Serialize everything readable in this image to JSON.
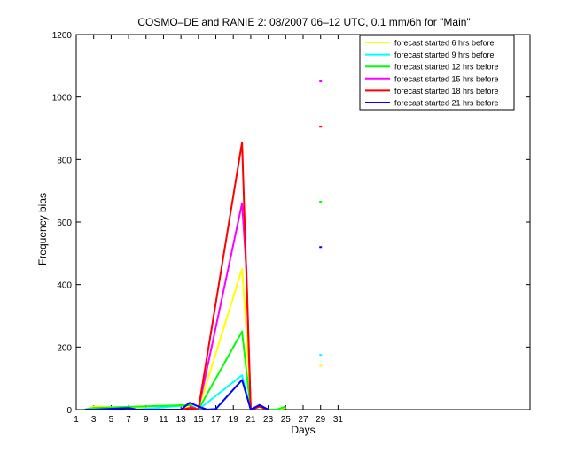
{
  "chart_data": {
    "type": "line",
    "title": "COSMO–DE and RANIE 2: 08/2007 06–12 UTC, 0.1 mm/6h for \"Main\"",
    "xlabel": "Days",
    "ylabel": "Frequency bias",
    "xlim": [
      1,
      53
    ],
    "ylim": [
      0,
      1200
    ],
    "xticks": [
      1,
      3,
      5,
      7,
      9,
      11,
      13,
      15,
      17,
      19,
      21,
      23,
      25,
      27,
      29,
      31
    ],
    "yticks": [
      0,
      200,
      400,
      600,
      800,
      1000,
      1200
    ],
    "legend_position": "top-right",
    "series": [
      {
        "name": "forecast started 6 hrs before",
        "color": "#ffff00",
        "points": [
          [
            2,
            0
          ],
          [
            3,
            10
          ],
          [
            13,
            0
          ],
          [
            14,
            10
          ],
          [
            15,
            0
          ],
          [
            20,
            450
          ],
          [
            20.5,
            250
          ],
          [
            21,
            0
          ],
          [
            22,
            15
          ],
          [
            23,
            0
          ],
          [
            24,
            0
          ],
          [
            25,
            5
          ],
          [
            29,
            140
          ]
        ]
      },
      {
        "name": "forecast started 9 hrs before",
        "color": "#00ffff",
        "points": [
          [
            2,
            0
          ],
          [
            3,
            5
          ],
          [
            7,
            5
          ],
          [
            8,
            0
          ],
          [
            14,
            15
          ],
          [
            15,
            0
          ],
          [
            20,
            110
          ],
          [
            21,
            0
          ],
          [
            22,
            10
          ],
          [
            23,
            0
          ],
          [
            29,
            175
          ]
        ]
      },
      {
        "name": "forecast started 12 hrs before",
        "color": "#00ff00",
        "points": [
          [
            2,
            0
          ],
          [
            3,
            5
          ],
          [
            14,
            15
          ],
          [
            15,
            0
          ],
          [
            20,
            250
          ],
          [
            21,
            0
          ],
          [
            22,
            12
          ],
          [
            23,
            0
          ],
          [
            24,
            0
          ],
          [
            25,
            10
          ],
          [
            29,
            665
          ]
        ]
      },
      {
        "name": "forecast started 15 hrs before",
        "color": "#ff00ff",
        "points": [
          [
            14,
            10
          ],
          [
            15,
            0
          ],
          [
            20,
            660
          ],
          [
            20.5,
            450
          ],
          [
            21,
            0
          ],
          [
            22,
            10
          ],
          [
            23,
            0
          ],
          [
            29,
            1050
          ]
        ]
      },
      {
        "name": "forecast started 18 hrs before",
        "color": "#ff0000",
        "points": [
          [
            13,
            0
          ],
          [
            14,
            5
          ],
          [
            15,
            0
          ],
          [
            20,
            855
          ],
          [
            21,
            0
          ],
          [
            22,
            10
          ],
          [
            23,
            0
          ],
          [
            29,
            905
          ]
        ]
      },
      {
        "name": "forecast started 21 hrs before",
        "color": "#0000ff",
        "points": [
          [
            2,
            0
          ],
          [
            3,
            0
          ],
          [
            7,
            5
          ],
          [
            8,
            0
          ],
          [
            13,
            0
          ],
          [
            14,
            22
          ],
          [
            15,
            10
          ],
          [
            16,
            0
          ],
          [
            17,
            2
          ],
          [
            20,
            95
          ],
          [
            21,
            0
          ],
          [
            22,
            15
          ],
          [
            23,
            0
          ],
          [
            29,
            520
          ]
        ]
      }
    ]
  }
}
